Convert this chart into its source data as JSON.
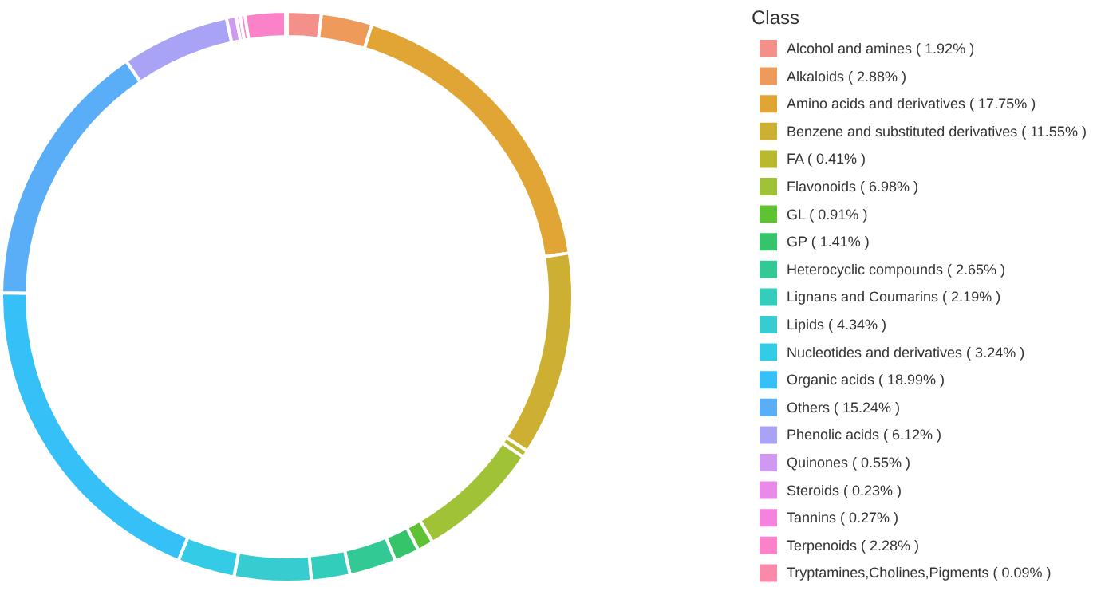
{
  "chart_data": {
    "type": "donut",
    "legend_title": "Class",
    "legend": "right",
    "categories": [
      "Alcohol and amines ( 1.92% )",
      "Alkaloids ( 2.88% )",
      "Amino acids and derivatives ( 17.75% )",
      "Benzene and substituted derivatives ( 11.55% )",
      "FA ( 0.41% )",
      "Flavonoids ( 6.98% )",
      "GL ( 0.91% )",
      "GP ( 1.41% )",
      "Heterocyclic compounds ( 2.65% )",
      "Lignans and Coumarins ( 2.19% )",
      "Lipids ( 4.34% )",
      "Nucleotides and derivatives ( 3.24% )",
      "Organic acids ( 18.99% )",
      "Others ( 15.24% )",
      "Phenolic acids ( 6.12% )",
      "Quinones ( 0.55% )",
      "Steroids ( 0.23% )",
      "Tannins ( 0.27% )",
      "Terpenoids ( 2.28% )",
      "Tryptamines,Cholines,Pigments ( 0.09% )"
    ],
    "values": [
      1.92,
      2.88,
      17.75,
      11.55,
      0.41,
      6.98,
      0.91,
      1.41,
      2.65,
      2.19,
      4.34,
      3.24,
      18.99,
      15.24,
      6.12,
      0.55,
      0.23,
      0.27,
      2.28,
      0.09
    ],
    "colors": [
      "#f4908a",
      "#ee9a5a",
      "#e0a534",
      "#cdb032",
      "#b9b92f",
      "#9fc236",
      "#5ec232",
      "#35c46a",
      "#33c995",
      "#33cdbb",
      "#36ccd0",
      "#33cbe6",
      "#35c0f7",
      "#5aaef8",
      "#a8a3f5",
      "#ce98f3",
      "#e98ae8",
      "#f582dd",
      "#fb82c8",
      "#fa8aa9"
    ]
  }
}
